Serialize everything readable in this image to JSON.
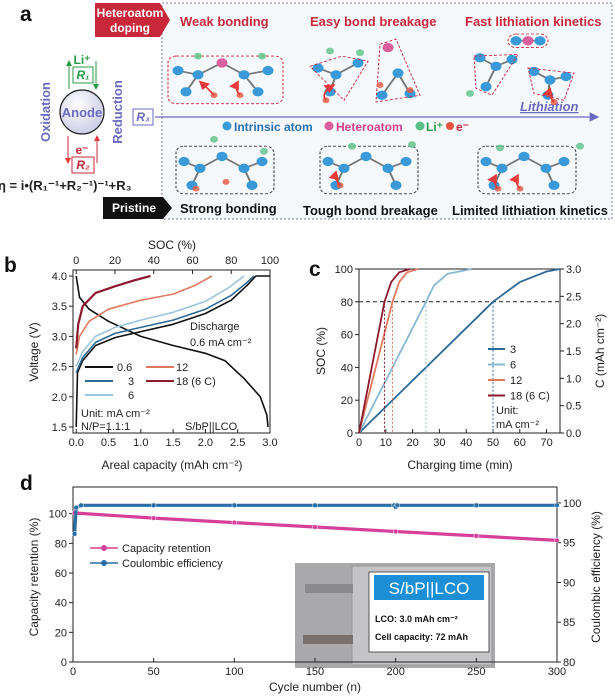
{
  "panel_a": {
    "label": "a",
    "doping_tag_line1": "Heteroatom",
    "doping_tag_line2": "doping",
    "pristine_tag": "Pristine",
    "top_titles": [
      "Weak bonding",
      "Easy bond breakage",
      "Fast lithiation kinetics"
    ],
    "bottom_titles": [
      "Strong bonding",
      "Tough bond breakage",
      "Limited lithiation kinetics"
    ],
    "legend": {
      "intrinsic": "Intrinsic atom",
      "hetero": "Heteroatom",
      "li": "Li⁺",
      "e": "e⁻"
    },
    "lithiation": "Lithiation",
    "anode": "Anode",
    "oxidation": "Oxidation",
    "reduction": "Reduction",
    "li_label": "Li⁺",
    "e_label": "e⁻",
    "r1": "R₁",
    "r2": "R₂",
    "r3": "R₃",
    "equation": "η = i•(R₁⁻¹+R₂⁻¹)⁻¹+R₃",
    "colors": {
      "intrinsic": "#3a9ad9",
      "hetero": "#d9609c",
      "li": "#5cc08a",
      "e": "#e8553f",
      "doping": "#c8283a",
      "pristine": "#111111",
      "accent": "#6a6ac0"
    }
  },
  "chart_data": [
    {
      "panel": "b",
      "type": "line",
      "xlabel": "Areal capacity (mAh cm⁻²)",
      "ylabel": "Voltage (V)",
      "x2label": "SOC (%)",
      "xlim": [
        0,
        3.0
      ],
      "ylim": [
        1.5,
        4.0
      ],
      "x2lim": [
        0,
        100
      ],
      "xticks": [
        "0.0",
        "0.5",
        "1.0",
        "1.5",
        "2.0",
        "2.5",
        "3.0"
      ],
      "yticks": [
        "1.5",
        "2.0",
        "2.5",
        "3.0",
        "3.5",
        "4.0"
      ],
      "x2ticks": [
        "0",
        "20",
        "40",
        "60",
        "80",
        "100"
      ],
      "legend_placement": "lower-left",
      "annotations": {
        "discharge_1": "Discharge",
        "discharge_2": "0.6 mA cm⁻²",
        "unit": "Unit: mA cm⁻²",
        "np": "N/P=1.1:1",
        "cell": "S/bP||LCO"
      },
      "series": [
        {
          "name": "0.6",
          "color": "#111111",
          "x": [
            0,
            0.02,
            0.1,
            0.3,
            0.6,
            1.0,
            1.5,
            2.0,
            2.4,
            2.65,
            2.78,
            3.0
          ],
          "y": [
            1.5,
            2.4,
            2.6,
            2.85,
            2.98,
            3.08,
            3.2,
            3.38,
            3.6,
            3.85,
            4.0,
            4.0
          ]
        },
        {
          "name": "Discharge 0.6",
          "color": "#111111",
          "x": [
            0,
            0.05,
            0.2,
            0.5,
            1.0,
            1.5,
            2.0,
            2.3,
            2.6,
            2.85,
            2.95,
            2.97
          ],
          "y": [
            4.0,
            3.65,
            3.45,
            3.25,
            3.0,
            2.85,
            2.72,
            2.6,
            2.3,
            2.0,
            1.7,
            1.5
          ]
        },
        {
          "name": "3",
          "color": "#2e6a96",
          "x": [
            0,
            0.1,
            0.3,
            0.6,
            1.0,
            1.5,
            2.0,
            2.4,
            2.65,
            2.75
          ],
          "y": [
            2.4,
            2.65,
            2.9,
            3.05,
            3.15,
            3.27,
            3.45,
            3.68,
            3.9,
            4.0
          ]
        },
        {
          "name": "6",
          "color": "#9cc4dc",
          "x": [
            0,
            0.1,
            0.3,
            0.6,
            1.0,
            1.5,
            2.0,
            2.35,
            2.6
          ],
          "y": [
            2.5,
            2.75,
            3.0,
            3.15,
            3.27,
            3.4,
            3.58,
            3.8,
            4.0
          ]
        },
        {
          "name": "12",
          "color": "#e07a5f",
          "x": [
            0,
            0.05,
            0.2,
            0.5,
            1.0,
            1.5,
            1.85,
            2.1
          ],
          "y": [
            2.7,
            3.0,
            3.25,
            3.45,
            3.6,
            3.7,
            3.85,
            4.0
          ]
        },
        {
          "name": "18 (6 C)",
          "color": "#8b1a2e",
          "x": [
            0,
            0.03,
            0.1,
            0.3,
            0.6,
            0.9,
            1.15
          ],
          "y": [
            2.8,
            3.2,
            3.5,
            3.72,
            3.83,
            3.93,
            4.0
          ]
        }
      ]
    },
    {
      "panel": "c",
      "type": "line",
      "xlabel": "Charging time (min)",
      "ylabel": "SOC (%)",
      "y2label": "C (mAh cm⁻²)",
      "xlim": [
        0,
        75
      ],
      "ylim": [
        0,
        100
      ],
      "y2lim": [
        0,
        3.0
      ],
      "xticks": [
        "0",
        "10",
        "20",
        "30",
        "40",
        "50",
        "60",
        "70"
      ],
      "yticks": [
        "0",
        "20",
        "40",
        "60",
        "80",
        "100"
      ],
      "y2ticks": [
        "0.0",
        "0.5",
        "1.0",
        "1.5",
        "2.0",
        "2.5",
        "3.0"
      ],
      "reference_soc": 80,
      "time_to_80": [
        50,
        25,
        12.5,
        9.5
      ],
      "legend_placement": "lower-right",
      "annotations": {
        "unit_1": "Unit:",
        "unit_2": "mA cm⁻²"
      },
      "series": [
        {
          "name": "3",
          "color": "#2e6a96",
          "x": [
            0,
            50,
            60,
            70,
            75
          ],
          "y": [
            0,
            80,
            92,
            98.5,
            100
          ]
        },
        {
          "name": "6",
          "color": "#8ab8d4",
          "x": [
            0,
            25,
            28,
            33,
            42
          ],
          "y": [
            0,
            80,
            90,
            97,
            100
          ]
        },
        {
          "name": "12",
          "color": "#e07a5f",
          "x": [
            0,
            12.5,
            15,
            18,
            22
          ],
          "y": [
            0,
            80,
            92,
            98,
            100
          ]
        },
        {
          "name": "18 (6 C)",
          "color": "#8b1a2e",
          "x": [
            0,
            9.5,
            12,
            15,
            19
          ],
          "y": [
            0,
            80,
            92,
            98,
            100
          ]
        }
      ]
    },
    {
      "panel": "d",
      "type": "scatter",
      "xlabel": "Cycle number (n)",
      "ylabel": "Capacity retention (%)",
      "y2label": "Coulombic efficiency (%)",
      "xlim": [
        0,
        300
      ],
      "ylim": [
        0,
        118
      ],
      "y2lim": [
        80,
        102
      ],
      "xticks": [
        "0",
        "50",
        "100",
        "150",
        "200",
        "250",
        "300"
      ],
      "yticks": [
        "0",
        "20",
        "40",
        "60",
        "80",
        "100"
      ],
      "y2ticks": [
        "80",
        "85",
        "90",
        "95",
        "100"
      ],
      "legend_placement": "top-left",
      "inset": {
        "title": "S/bP||LCO",
        "line1": "LCO: 3.0 mAh cm⁻²",
        "line2": "Cell capacity: 72 mAh",
        "color": "#1d8fd6"
      },
      "series": [
        {
          "name": "Capacity retention",
          "axis": "left",
          "color": "#d6409a",
          "x": [
            1,
            50,
            100,
            150,
            200,
            250,
            300
          ],
          "y": [
            100.5,
            97,
            94,
            91,
            88,
            85,
            82
          ]
        },
        {
          "name": "Coulombic efficiency",
          "axis": "right",
          "color": "#2a6ea6",
          "x": [
            1,
            2,
            5,
            50,
            100,
            150,
            199,
            200,
            201,
            250,
            300
          ],
          "y": [
            96.1,
            99.4,
            99.7,
            99.7,
            99.7,
            99.7,
            99.7,
            99.5,
            99.7,
            99.7,
            99.7
          ]
        }
      ]
    }
  ]
}
